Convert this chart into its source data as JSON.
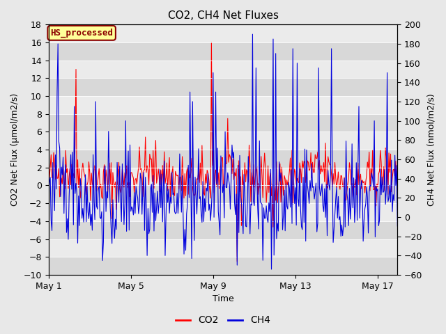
{
  "title": "CO2, CH4 Net Fluxes",
  "xlabel": "Time",
  "ylabel_left": "CO2 Net Flux (μmol/m2/s)",
  "ylabel_right": "CH4 Net Flux (nmol/m2/s)",
  "ylim_left": [
    -10,
    18
  ],
  "ylim_right": [
    -60,
    200
  ],
  "yticks_left": [
    -10,
    -8,
    -6,
    -4,
    -2,
    0,
    2,
    4,
    6,
    8,
    10,
    12,
    14,
    16,
    18
  ],
  "yticks_right": [
    -60,
    -40,
    -20,
    0,
    20,
    40,
    60,
    80,
    100,
    120,
    140,
    160,
    180,
    200
  ],
  "xtick_labels": [
    "May 1",
    "May 5",
    "May 9",
    "May 13",
    "May 17"
  ],
  "xtick_positions": [
    0,
    96,
    192,
    288,
    384
  ],
  "n_points": 408,
  "label_box_text": "HS_processed",
  "label_box_facecolor": "#FFFF99",
  "label_box_edgecolor": "#8B0000",
  "co2_color": "#FF0000",
  "ch4_color": "#0000DD",
  "legend_co2": "CO2",
  "legend_ch4": "CH4",
  "background_color": "#E8E8E8",
  "plot_bg_light": "#EBEBEB",
  "plot_bg_dark": "#D8D8D8",
  "title_fontsize": 11,
  "axis_label_fontsize": 9,
  "tick_fontsize": 9,
  "legend_fontsize": 10,
  "linewidth": 0.8
}
